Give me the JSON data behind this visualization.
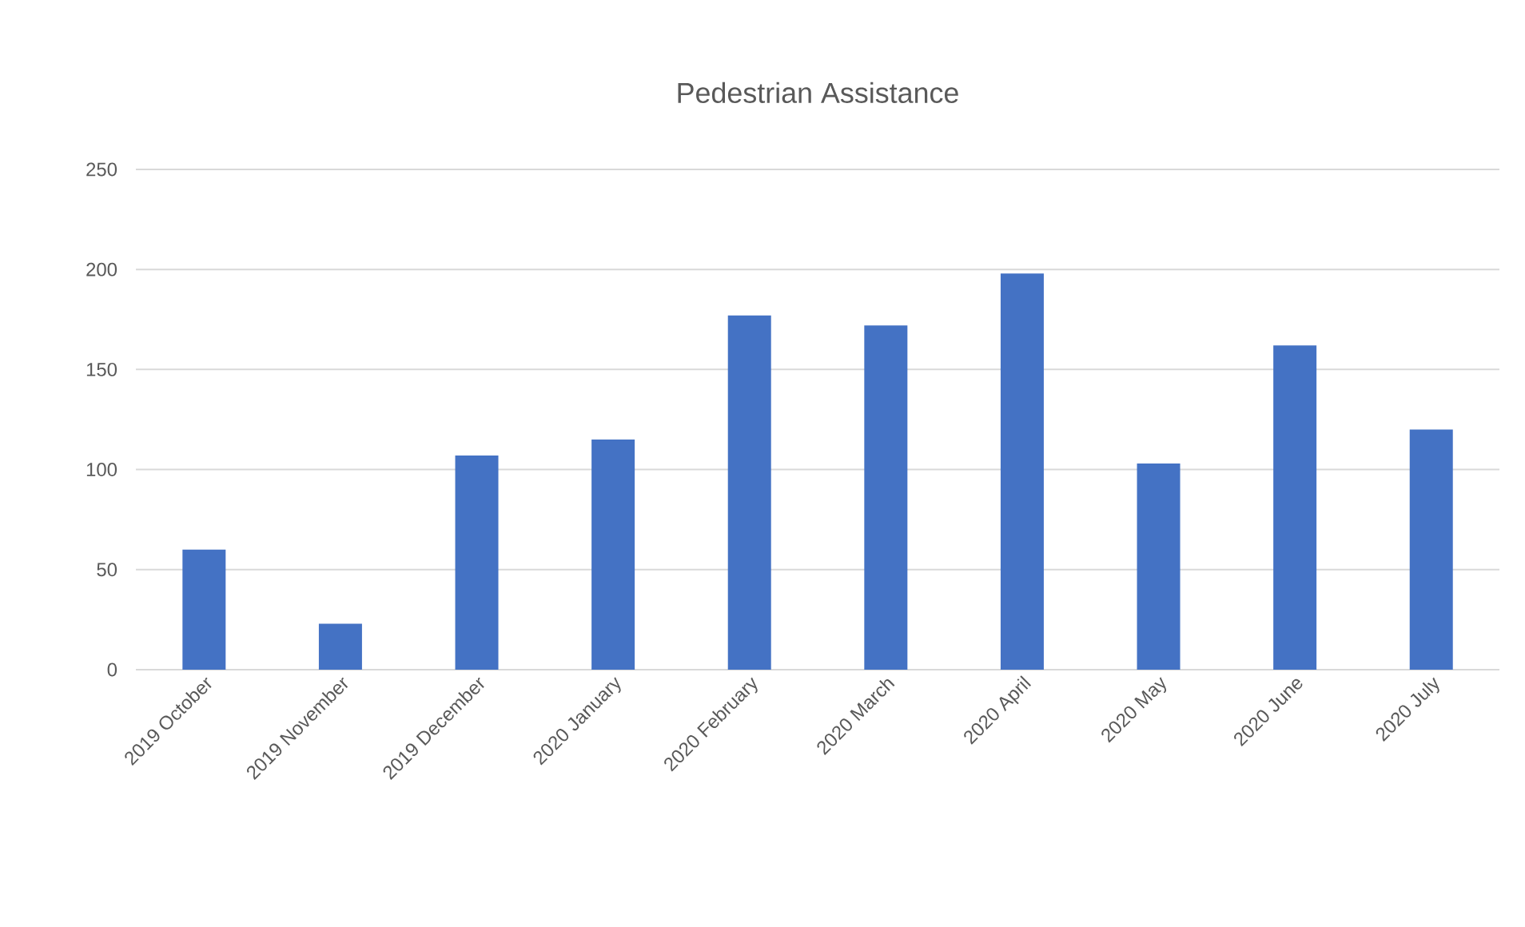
{
  "chart_data": {
    "type": "bar",
    "title": "Pedestrian Assistance",
    "categories": [
      "2019 October",
      "2019 November",
      "2019 December",
      "2020 January",
      "2020 February",
      "2020 March",
      "2020 April",
      "2020 May",
      "2020 June",
      "2020 July"
    ],
    "values": [
      60,
      23,
      107,
      115,
      177,
      172,
      198,
      103,
      162,
      120
    ],
    "color": "#4472c4",
    "ylim": [
      0,
      250
    ],
    "yticks": [
      0,
      50,
      100,
      150,
      200,
      250
    ],
    "grid": "y"
  }
}
